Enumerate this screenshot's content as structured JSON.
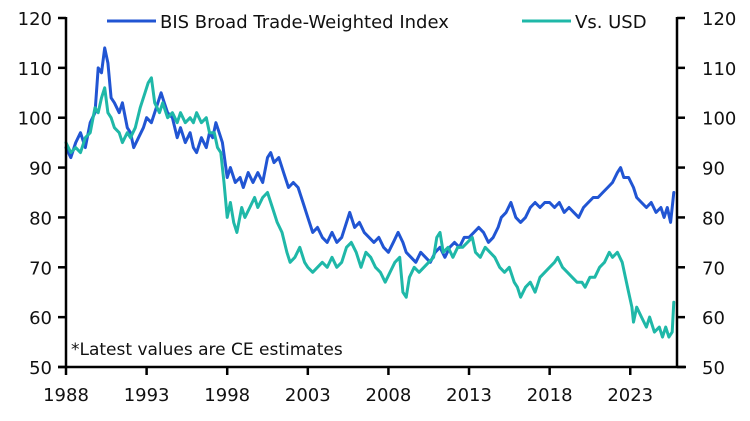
{
  "chart_data": {
    "type": "line",
    "title": "",
    "xlabel": "",
    "ylabel": "",
    "ylabel_right": "",
    "xlim": [
      1988,
      2025.9
    ],
    "ylim": [
      50,
      120
    ],
    "ylim_right": [
      50,
      120
    ],
    "grid": false,
    "legend_position": "top",
    "x_ticks": [
      "1988",
      "1993",
      "1998",
      "2003",
      "2008",
      "2013",
      "2018",
      "2023"
    ],
    "x_tick_values": [
      1988,
      1993,
      1998,
      2003,
      2008,
      2013,
      2018,
      2023
    ],
    "y_ticks": [
      "50",
      "60",
      "70",
      "80",
      "90",
      "100",
      "110",
      "120"
    ],
    "y_tick_values": [
      50,
      60,
      70,
      80,
      90,
      100,
      110,
      120
    ],
    "annotation": "*Latest values are CE estimates",
    "colors": {
      "bis": "#2155d3",
      "usd": "#1fb8a8",
      "axis": "#000000"
    },
    "series": [
      {
        "name": "BIS Broad Trade-Weighted Index",
        "axis": "left",
        "color": "#2155d3",
        "points": [
          [
            1988.0,
            94
          ],
          [
            1988.3,
            92
          ],
          [
            1988.6,
            95
          ],
          [
            1988.9,
            97
          ],
          [
            1989.2,
            94
          ],
          [
            1989.5,
            99
          ],
          [
            1989.8,
            101
          ],
          [
            1990.0,
            110
          ],
          [
            1990.2,
            109
          ],
          [
            1990.4,
            114
          ],
          [
            1990.6,
            111
          ],
          [
            1990.8,
            104
          ],
          [
            1991.0,
            103
          ],
          [
            1991.3,
            101
          ],
          [
            1991.5,
            103
          ],
          [
            1991.8,
            98
          ],
          [
            1992.0,
            97
          ],
          [
            1992.2,
            94
          ],
          [
            1992.5,
            96
          ],
          [
            1992.8,
            98
          ],
          [
            1993.0,
            100
          ],
          [
            1993.3,
            99
          ],
          [
            1993.6,
            102
          ],
          [
            1993.9,
            105
          ],
          [
            1994.1,
            103
          ],
          [
            1994.3,
            101
          ],
          [
            1994.6,
            100
          ],
          [
            1994.9,
            96
          ],
          [
            1995.1,
            98
          ],
          [
            1995.4,
            95
          ],
          [
            1995.7,
            97
          ],
          [
            1995.9,
            94
          ],
          [
            1996.1,
            93
          ],
          [
            1996.4,
            96
          ],
          [
            1996.7,
            94
          ],
          [
            1996.9,
            97
          ],
          [
            1997.1,
            96
          ],
          [
            1997.3,
            99
          ],
          [
            1997.5,
            97
          ],
          [
            1997.7,
            95
          ],
          [
            1998.0,
            88
          ],
          [
            1998.2,
            90
          ],
          [
            1998.5,
            87
          ],
          [
            1998.8,
            88
          ],
          [
            1999.0,
            86
          ],
          [
            1999.3,
            89
          ],
          [
            1999.6,
            87
          ],
          [
            1999.9,
            89
          ],
          [
            2000.2,
            87
          ],
          [
            2000.5,
            92
          ],
          [
            2000.7,
            93
          ],
          [
            2000.9,
            91
          ],
          [
            2001.2,
            92
          ],
          [
            2001.5,
            89
          ],
          [
            2001.8,
            86
          ],
          [
            2002.1,
            87
          ],
          [
            2002.4,
            86
          ],
          [
            2002.7,
            83
          ],
          [
            2003.0,
            80
          ],
          [
            2003.3,
            77
          ],
          [
            2003.6,
            78
          ],
          [
            2003.9,
            76
          ],
          [
            2004.2,
            75
          ],
          [
            2004.5,
            77
          ],
          [
            2004.8,
            75
          ],
          [
            2005.1,
            76
          ],
          [
            2005.4,
            79
          ],
          [
            2005.6,
            81
          ],
          [
            2005.9,
            78
          ],
          [
            2006.2,
            79
          ],
          [
            2006.5,
            77
          ],
          [
            2006.8,
            76
          ],
          [
            2007.1,
            75
          ],
          [
            2007.4,
            76
          ],
          [
            2007.7,
            74
          ],
          [
            2008.0,
            73
          ],
          [
            2008.3,
            75
          ],
          [
            2008.6,
            77
          ],
          [
            2008.9,
            75
          ],
          [
            2009.1,
            73
          ],
          [
            2009.4,
            72
          ],
          [
            2009.7,
            71
          ],
          [
            2010.0,
            73
          ],
          [
            2010.3,
            72
          ],
          [
            2010.6,
            71
          ],
          [
            2010.9,
            73
          ],
          [
            2011.2,
            74
          ],
          [
            2011.5,
            72
          ],
          [
            2011.8,
            74
          ],
          [
            2012.1,
            75
          ],
          [
            2012.4,
            74
          ],
          [
            2012.7,
            76
          ],
          [
            2013.0,
            76
          ],
          [
            2013.3,
            77
          ],
          [
            2013.6,
            78
          ],
          [
            2013.9,
            77
          ],
          [
            2014.2,
            75
          ],
          [
            2014.5,
            76
          ],
          [
            2014.8,
            78
          ],
          [
            2015.0,
            80
          ],
          [
            2015.3,
            81
          ],
          [
            2015.6,
            83
          ],
          [
            2015.9,
            80
          ],
          [
            2016.2,
            79
          ],
          [
            2016.5,
            80
          ],
          [
            2016.8,
            82
          ],
          [
            2017.1,
            83
          ],
          [
            2017.4,
            82
          ],
          [
            2017.7,
            83
          ],
          [
            2018.0,
            83
          ],
          [
            2018.3,
            82
          ],
          [
            2018.6,
            83
          ],
          [
            2018.9,
            81
          ],
          [
            2019.2,
            82
          ],
          [
            2019.5,
            81
          ],
          [
            2019.8,
            80
          ],
          [
            2020.1,
            82
          ],
          [
            2020.4,
            83
          ],
          [
            2020.7,
            84
          ],
          [
            2021.0,
            84
          ],
          [
            2021.3,
            85
          ],
          [
            2021.6,
            86
          ],
          [
            2021.9,
            87
          ],
          [
            2022.2,
            89
          ],
          [
            2022.4,
            90
          ],
          [
            2022.6,
            88
          ],
          [
            2022.9,
            88
          ],
          [
            2023.2,
            86
          ],
          [
            2023.4,
            84
          ],
          [
            2023.7,
            83
          ],
          [
            2024.0,
            82
          ],
          [
            2024.3,
            83
          ],
          [
            2024.6,
            81
          ],
          [
            2024.9,
            82
          ],
          [
            2025.1,
            80
          ],
          [
            2025.3,
            82
          ],
          [
            2025.5,
            79
          ],
          [
            2025.6,
            82
          ],
          [
            2025.7,
            85
          ]
        ]
      },
      {
        "name": "Vs. USD",
        "axis": "left",
        "color": "#1fb8a8",
        "points": [
          [
            1988.0,
            95
          ],
          [
            1988.3,
            93
          ],
          [
            1988.6,
            94
          ],
          [
            1988.9,
            93
          ],
          [
            1989.2,
            96
          ],
          [
            1989.5,
            97
          ],
          [
            1989.8,
            102
          ],
          [
            1990.0,
            101
          ],
          [
            1990.2,
            104
          ],
          [
            1990.4,
            106
          ],
          [
            1990.6,
            101
          ],
          [
            1990.8,
            100
          ],
          [
            1991.0,
            98
          ],
          [
            1991.3,
            97
          ],
          [
            1991.5,
            95
          ],
          [
            1991.8,
            97
          ],
          [
            1992.0,
            96
          ],
          [
            1992.3,
            98
          ],
          [
            1992.6,
            102
          ],
          [
            1992.9,
            105
          ],
          [
            1993.1,
            107
          ],
          [
            1993.3,
            108
          ],
          [
            1993.5,
            103
          ],
          [
            1993.8,
            101
          ],
          [
            1994.0,
            103
          ],
          [
            1994.3,
            100
          ],
          [
            1994.6,
            101
          ],
          [
            1994.9,
            99
          ],
          [
            1995.1,
            101
          ],
          [
            1995.4,
            99
          ],
          [
            1995.7,
            100
          ],
          [
            1995.9,
            99
          ],
          [
            1996.1,
            101
          ],
          [
            1996.4,
            99
          ],
          [
            1996.7,
            100
          ],
          [
            1996.9,
            97
          ],
          [
            1997.2,
            97
          ],
          [
            1997.4,
            94
          ],
          [
            1997.6,
            93
          ],
          [
            1997.8,
            87
          ],
          [
            1998.0,
            80
          ],
          [
            1998.2,
            83
          ],
          [
            1998.4,
            79
          ],
          [
            1998.6,
            77
          ],
          [
            1998.9,
            82
          ],
          [
            1999.1,
            80
          ],
          [
            1999.4,
            82
          ],
          [
            1999.7,
            84
          ],
          [
            1999.9,
            82
          ],
          [
            2000.2,
            84
          ],
          [
            2000.5,
            85
          ],
          [
            2000.8,
            82
          ],
          [
            2001.1,
            79
          ],
          [
            2001.4,
            77
          ],
          [
            2001.7,
            73
          ],
          [
            2001.9,
            71
          ],
          [
            2002.2,
            72
          ],
          [
            2002.5,
            74
          ],
          [
            2002.8,
            71
          ],
          [
            2003.0,
            70
          ],
          [
            2003.3,
            69
          ],
          [
            2003.6,
            70
          ],
          [
            2003.9,
            71
          ],
          [
            2004.2,
            70
          ],
          [
            2004.5,
            72
          ],
          [
            2004.8,
            70
          ],
          [
            2005.1,
            71
          ],
          [
            2005.4,
            74
          ],
          [
            2005.7,
            75
          ],
          [
            2006.0,
            73
          ],
          [
            2006.3,
            70
          ],
          [
            2006.6,
            73
          ],
          [
            2006.9,
            72
          ],
          [
            2007.2,
            70
          ],
          [
            2007.5,
            69
          ],
          [
            2007.8,
            67
          ],
          [
            2008.1,
            69
          ],
          [
            2008.4,
            71
          ],
          [
            2008.7,
            72
          ],
          [
            2008.9,
            65
          ],
          [
            2009.1,
            64
          ],
          [
            2009.3,
            68
          ],
          [
            2009.6,
            70
          ],
          [
            2009.9,
            69
          ],
          [
            2010.2,
            70
          ],
          [
            2010.5,
            71
          ],
          [
            2010.8,
            72
          ],
          [
            2011.0,
            76
          ],
          [
            2011.2,
            77
          ],
          [
            2011.4,
            73
          ],
          [
            2011.7,
            74
          ],
          [
            2012.0,
            72
          ],
          [
            2012.3,
            74
          ],
          [
            2012.6,
            74
          ],
          [
            2012.9,
            75
          ],
          [
            2013.2,
            76
          ],
          [
            2013.4,
            73
          ],
          [
            2013.7,
            72
          ],
          [
            2014.0,
            74
          ],
          [
            2014.3,
            73
          ],
          [
            2014.6,
            72
          ],
          [
            2014.9,
            70
          ],
          [
            2015.2,
            69
          ],
          [
            2015.5,
            70
          ],
          [
            2015.8,
            67
          ],
          [
            2016.0,
            66
          ],
          [
            2016.2,
            64
          ],
          [
            2016.5,
            66
          ],
          [
            2016.8,
            67
          ],
          [
            2017.1,
            65
          ],
          [
            2017.4,
            68
          ],
          [
            2017.7,
            69
          ],
          [
            2018.0,
            70
          ],
          [
            2018.3,
            71
          ],
          [
            2018.5,
            72
          ],
          [
            2018.8,
            70
          ],
          [
            2019.1,
            69
          ],
          [
            2019.4,
            68
          ],
          [
            2019.7,
            67
          ],
          [
            2020.0,
            67
          ],
          [
            2020.2,
            66
          ],
          [
            2020.5,
            68
          ],
          [
            2020.8,
            68
          ],
          [
            2021.1,
            70
          ],
          [
            2021.4,
            71
          ],
          [
            2021.7,
            73
          ],
          [
            2021.9,
            72
          ],
          [
            2022.2,
            73
          ],
          [
            2022.5,
            71
          ],
          [
            2022.7,
            68
          ],
          [
            2022.9,
            65
          ],
          [
            2023.1,
            62
          ],
          [
            2023.2,
            59
          ],
          [
            2023.4,
            62
          ],
          [
            2023.7,
            60
          ],
          [
            2024.0,
            58
          ],
          [
            2024.2,
            60
          ],
          [
            2024.5,
            57
          ],
          [
            2024.8,
            58
          ],
          [
            2025.0,
            56
          ],
          [
            2025.2,
            58
          ],
          [
            2025.4,
            56
          ],
          [
            2025.6,
            57
          ],
          [
            2025.7,
            63
          ]
        ]
      }
    ]
  }
}
